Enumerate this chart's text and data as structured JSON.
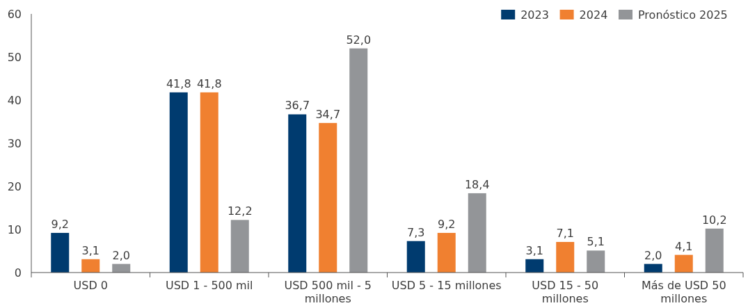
{
  "chart_data": {
    "type": "bar",
    "categories": [
      "USD 0",
      "USD 1 - 500 mil",
      "USD 500 mil - 5 millones",
      "USD 5 - 15 millones",
      "USD 15 - 50 millones",
      "Más de USD 50 millones"
    ],
    "series": [
      {
        "name": "2023",
        "color": "#003b6f",
        "values": [
          9.2,
          41.8,
          36.7,
          7.3,
          3.1,
          2.0
        ],
        "value_labels": [
          "9,2",
          "41,8",
          "36,7",
          "7,3",
          "3,1",
          "2,0"
        ]
      },
      {
        "name": "2024",
        "color": "#f08030",
        "values": [
          3.1,
          41.8,
          34.7,
          9.2,
          7.1,
          4.1
        ],
        "value_labels": [
          "3,1",
          "41,8",
          "34,7",
          "9,2",
          "7,1",
          "4,1"
        ]
      },
      {
        "name": "Pronóstico 2025",
        "color": "#939598",
        "values": [
          2.0,
          12.2,
          52.0,
          18.4,
          5.1,
          10.2
        ],
        "value_labels": [
          "2,0",
          "12,2",
          "52,0",
          "18,4",
          "5,1",
          "10,2"
        ]
      }
    ],
    "ylim": [
      0,
      60
    ],
    "yticks": [
      0,
      10,
      20,
      30,
      40,
      50,
      60
    ],
    "legend": "top right",
    "grid": false
  }
}
